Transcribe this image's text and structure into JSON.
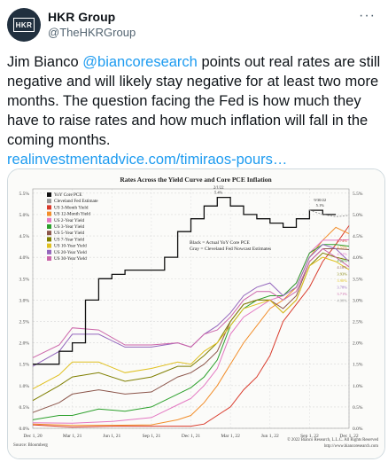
{
  "author": {
    "name": "HKR Group",
    "handle": "@TheHKRGroup",
    "avatar_text": "HKR"
  },
  "more_label": "···",
  "tweet": {
    "prefix": "Jim Bianco ",
    "mention": "@biancoresearch",
    "body": " points out real rates are still negative and will likely stay negative for at least two more months. The question facing the Fed is how much they have to raise rates and how much inflation will fall in the coming months.",
    "link": "realinvestmentadvice.com/timiraos-pours…"
  },
  "chart_data": {
    "type": "line",
    "title": "Rates Across the Yield Curve and Core PCE Inflation",
    "x_ticks": [
      "Dec 1, 20",
      "Mar 1, 21",
      "Jun 1, 21",
      "Sep 1, 21",
      "Dec 1, 21",
      "Mar 1, 22",
      "Jun 1, 22",
      "Sep 1, 22",
      "Dec 1, 22"
    ],
    "y_ticks": [
      "0.0%",
      "0.5%",
      "1.0%",
      "1.5%",
      "2.0%",
      "2.5%",
      "3.0%",
      "3.5%",
      "4.0%",
      "4.5%",
      "5.0%",
      "5.5%"
    ],
    "ylim": [
      0,
      5.6
    ],
    "xlim": [
      0,
      24
    ],
    "legend": [
      {
        "name": "YoY Core PCE",
        "color": "#111111"
      },
      {
        "name": "Cleveland Fed Estimate",
        "color": "#9a9a9a"
      },
      {
        "name": "US 3-Month Yield",
        "color": "#d93a2b"
      },
      {
        "name": "US 12-Month Yield",
        "color": "#f28e2b"
      },
      {
        "name": "US 2-Year Yield",
        "color": "#e377c2"
      },
      {
        "name": "US 3-Year Yield",
        "color": "#2ca02c"
      },
      {
        "name": "US 5-Year Yield",
        "color": "#8c564b"
      },
      {
        "name": "US 7-Year Yield",
        "color": "#7f7f00"
      },
      {
        "name": "US 10-Year Yield",
        "color": "#e0c020"
      },
      {
        "name": "US 20-Year Yield",
        "color": "#9467bd"
      },
      {
        "name": "US 30-Year Yield",
        "color": "#cc66aa"
      }
    ],
    "notes": [
      "Black = Actual YoY Core PCE",
      "Gray = Cleveland Fed Nowcast Estimates"
    ],
    "annotations": [
      {
        "text": "2/1/22",
        "value": "5.4%",
        "x": 14.1,
        "y": 5.4
      },
      {
        "text": "9/30/22",
        "value": "5.1%",
        "x": 21.8,
        "y": 5.1
      }
    ],
    "right_labels": [
      "4.74%",
      "4.55%",
      "4.41%",
      "4.26%",
      "4.18%",
      "3.93%",
      "3.90%",
      "3.78%",
      "3.71%",
      "4.98%"
    ],
    "source": "Source: Bloomberg",
    "copyright": "© 2022 Bianco Research, L.L.C. All Rights Reserved",
    "website": "http://www.biancoresearch.com",
    "series": [
      {
        "name": "YoY Core PCE",
        "x": [
          0,
          1,
          2,
          3,
          4,
          5,
          6,
          7,
          8,
          9,
          10,
          11,
          12,
          13,
          14,
          15,
          16,
          17,
          18,
          19,
          20,
          21,
          22,
          23
        ],
        "y": [
          1.5,
          1.5,
          1.8,
          2.0,
          3.0,
          3.5,
          3.6,
          3.7,
          3.7,
          3.7,
          4.0,
          4.6,
          4.9,
          5.2,
          5.4,
          5.2,
          5.0,
          4.9,
          4.8,
          4.7,
          4.9,
          5.1,
          5.0,
          5.0
        ]
      },
      {
        "name": "Cleveland Fed Estimate",
        "x": [
          21,
          22,
          23,
          24
        ],
        "y": [
          5.1,
          5.0,
          4.95,
          4.98
        ]
      },
      {
        "name": "US 3-Month Yield",
        "x": [
          0,
          3,
          6,
          9,
          12,
          13,
          14,
          15,
          16,
          17,
          18,
          19,
          20,
          21,
          22,
          23,
          24
        ],
        "y": [
          0.08,
          0.03,
          0.05,
          0.05,
          0.05,
          0.1,
          0.3,
          0.5,
          0.9,
          1.2,
          1.7,
          2.5,
          2.9,
          3.3,
          3.9,
          4.3,
          4.74
        ]
      },
      {
        "name": "US 12-Month Yield",
        "x": [
          0,
          3,
          6,
          9,
          11,
          12,
          13,
          14,
          15,
          16,
          17,
          18,
          19,
          20,
          21,
          22,
          23,
          24
        ],
        "y": [
          0.1,
          0.07,
          0.07,
          0.08,
          0.2,
          0.3,
          0.6,
          1.0,
          1.5,
          2.0,
          2.4,
          2.8,
          3.0,
          3.3,
          4.0,
          4.4,
          4.7,
          4.55
        ]
      },
      {
        "name": "US 2-Year Yield",
        "x": [
          0,
          3,
          6,
          9,
          10,
          11,
          12,
          13,
          14,
          15,
          16,
          17,
          18,
          19,
          20,
          21,
          22,
          23,
          24
        ],
        "y": [
          0.13,
          0.12,
          0.16,
          0.25,
          0.4,
          0.55,
          0.7,
          1.0,
          1.4,
          2.2,
          2.6,
          2.8,
          3.0,
          3.1,
          3.4,
          4.1,
          4.4,
          4.4,
          4.41
        ]
      },
      {
        "name": "US 3-Year Yield",
        "x": [
          0,
          2,
          3,
          5,
          7,
          9,
          11,
          12,
          13,
          14,
          15,
          16,
          17,
          18,
          19,
          20,
          21,
          22,
          23,
          24
        ],
        "y": [
          0.2,
          0.3,
          0.3,
          0.45,
          0.4,
          0.5,
          0.8,
          0.95,
          1.2,
          1.6,
          2.4,
          2.8,
          3.0,
          3.1,
          3.1,
          3.4,
          4.1,
          4.3,
          4.3,
          4.26
        ]
      },
      {
        "name": "US 5-Year Yield",
        "x": [
          0,
          2,
          3,
          5,
          7,
          9,
          11,
          12,
          13,
          14,
          15,
          16,
          17,
          18,
          19,
          20,
          21,
          22,
          23,
          24
        ],
        "y": [
          0.37,
          0.6,
          0.8,
          0.9,
          0.8,
          0.85,
          1.2,
          1.3,
          1.5,
          1.8,
          2.5,
          2.9,
          3.0,
          3.0,
          2.8,
          3.1,
          3.9,
          4.2,
          4.2,
          4.18
        ]
      },
      {
        "name": "US 7-Year Yield",
        "x": [
          0,
          2,
          3,
          5,
          7,
          9,
          11,
          12,
          13,
          14,
          15,
          16,
          17,
          18,
          19,
          20,
          21,
          22,
          23,
          24
        ],
        "y": [
          0.65,
          1.0,
          1.2,
          1.3,
          1.1,
          1.2,
          1.45,
          1.45,
          1.7,
          2.0,
          2.5,
          2.9,
          3.0,
          3.0,
          2.7,
          3.0,
          3.8,
          4.1,
          4.0,
          3.93
        ]
      },
      {
        "name": "US 10-Year Yield",
        "x": [
          0,
          2,
          3,
          5,
          7,
          9,
          11,
          12,
          13,
          14,
          15,
          16,
          17,
          18,
          19,
          20,
          21,
          22,
          23,
          24
        ],
        "y": [
          0.92,
          1.25,
          1.55,
          1.55,
          1.3,
          1.4,
          1.55,
          1.5,
          1.8,
          2.0,
          2.4,
          2.8,
          2.9,
          3.0,
          2.7,
          3.0,
          3.8,
          4.0,
          3.9,
          3.71
        ]
      },
      {
        "name": "US 20-Year Yield",
        "x": [
          0,
          2,
          3,
          5,
          7,
          9,
          11,
          12,
          13,
          14,
          15,
          16,
          17,
          18,
          19,
          20,
          21,
          22,
          23,
          24
        ],
        "y": [
          1.45,
          1.8,
          2.2,
          2.2,
          1.9,
          1.9,
          2.0,
          1.9,
          2.2,
          2.4,
          2.7,
          3.1,
          3.3,
          3.4,
          3.1,
          3.3,
          4.0,
          4.3,
          4.2,
          3.9
        ]
      },
      {
        "name": "US 30-Year Yield",
        "x": [
          0,
          2,
          3,
          5,
          7,
          9,
          11,
          12,
          13,
          14,
          15,
          16,
          17,
          18,
          19,
          20,
          21,
          22,
          23,
          24
        ],
        "y": [
          1.65,
          1.95,
          2.35,
          2.3,
          1.95,
          1.95,
          2.0,
          1.9,
          2.2,
          2.3,
          2.6,
          3.0,
          3.2,
          3.2,
          3.0,
          3.2,
          3.9,
          4.2,
          4.0,
          3.78
        ]
      }
    ]
  }
}
